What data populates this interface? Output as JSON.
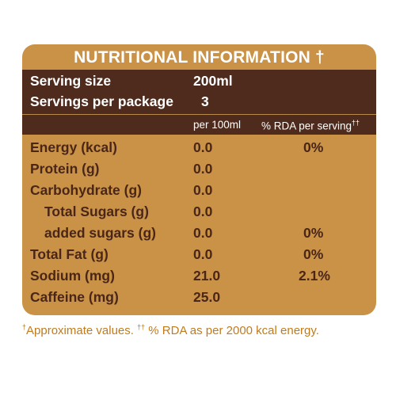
{
  "title": "NUTRITIONAL INFORMATION †",
  "serving": {
    "size_label": "Serving size",
    "size_value": "200ml",
    "per_package_label": "Servings per package",
    "per_package_value": "3"
  },
  "columns": {
    "per100": "per 100ml",
    "rda": "% RDA per serving",
    "rda_mark": "††"
  },
  "rows": [
    {
      "name": "Energy (kcal)",
      "per100": "0.0",
      "rda": "0%"
    },
    {
      "name": "Protein (g)",
      "per100": "0.0",
      "rda": ""
    },
    {
      "name": "Carbohydrate (g)",
      "per100": "0.0",
      "rda": ""
    },
    {
      "name": "Total Sugars (g)",
      "per100": "0.0",
      "rda": ""
    },
    {
      "name": "added sugars (g)",
      "per100": "0.0",
      "rda": "0%"
    },
    {
      "name": "Total Fat (g)",
      "per100": "0.0",
      "rda": "0%"
    },
    {
      "name": "Sodium (mg)",
      "per100": "21.0",
      "rda": "2.1%"
    },
    {
      "name": "Caffeine (mg)",
      "per100": "25.0",
      "rda": ""
    }
  ],
  "footnote": {
    "mark1": "†",
    "text1": "Approximate values. ",
    "mark2": "††",
    "text2": " % RDA as per 2000 kcal energy."
  },
  "colors": {
    "panel": "#c99247",
    "dark_band": "#4e2b1c",
    "row_text": "#4a2618",
    "footnote": "#c17b1b"
  }
}
